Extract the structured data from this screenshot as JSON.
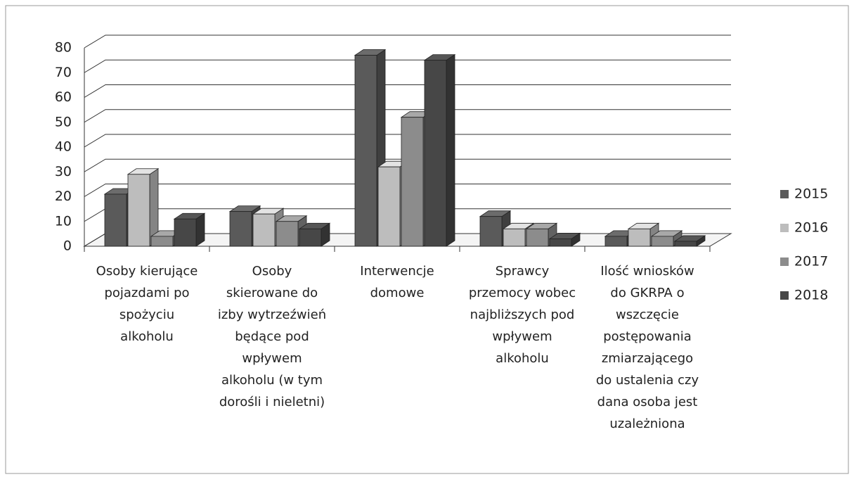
{
  "chart_data": {
    "type": "bar3d",
    "categories": [
      "Osoby kierujące pojazdami po spożyciu alkoholu",
      "Osoby skierowane do izby wytrzeźwień będące pod wpływem alkoholu (w tym dorośli i nieletni)",
      "Interwencje domowe",
      "Sprawcy przemocy wobec najbliższych pod wpływem alkoholu",
      "Ilość wniosków do GKRPA o wszczęcie postępowania zmiarzającego do ustalenia czy dana osoba jest uzależniona"
    ],
    "series": [
      {
        "name": "2015",
        "color": "#5a5a5a",
        "values": [
          21,
          14,
          77,
          12,
          4
        ]
      },
      {
        "name": "2016",
        "color": "#bdbdbd",
        "values": [
          29,
          13,
          32,
          7,
          7
        ]
      },
      {
        "name": "2017",
        "color": "#8c8c8c",
        "values": [
          4,
          10,
          52,
          7,
          4
        ]
      },
      {
        "name": "2018",
        "color": "#474747",
        "values": [
          11,
          7,
          75,
          3,
          2
        ]
      }
    ],
    "ylim": [
      0,
      80
    ],
    "yticks": [
      0,
      10,
      20,
      30,
      40,
      50,
      60,
      70,
      80
    ],
    "grid": true,
    "legend": "right"
  }
}
